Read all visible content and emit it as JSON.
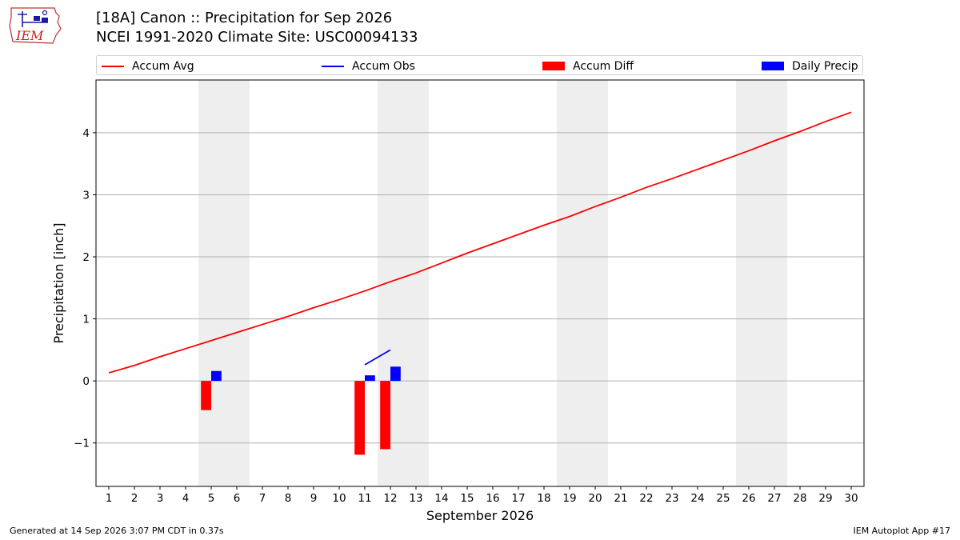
{
  "header": {
    "logo_text": "IEM",
    "title_line1": "[18A] Canon :: Precipitation for Sep 2026",
    "title_line2": "NCEI 1991-2020 Climate Site: USC00094133"
  },
  "colors": {
    "accum_avg": "#ff0000",
    "accum_obs": "#0000ff",
    "accum_diff": "#ff0000",
    "daily_precip": "#0000ff",
    "weekend_shade": "#eeeeee",
    "grid": "#b0b0b0"
  },
  "legend": [
    {
      "label": "Accum Avg",
      "kind": "line",
      "color": "#ff0000"
    },
    {
      "label": "Accum Obs",
      "kind": "line",
      "color": "#0000ff"
    },
    {
      "label": "Accum Diff",
      "kind": "box",
      "color": "#ff0000"
    },
    {
      "label": "Daily Precip",
      "kind": "box",
      "color": "#0000ff"
    }
  ],
  "chart_data": {
    "type": "bar",
    "xlabel": "September 2026",
    "ylabel": "Precipitation [inch]",
    "xlim": [
      0.5,
      30.5
    ],
    "ylim": [
      -1.7,
      4.85
    ],
    "x_ticks": [
      1,
      2,
      3,
      4,
      5,
      6,
      7,
      8,
      9,
      10,
      11,
      12,
      13,
      14,
      15,
      16,
      17,
      18,
      19,
      20,
      21,
      22,
      23,
      24,
      25,
      26,
      27,
      28,
      29,
      30
    ],
    "y_ticks": [
      -1,
      0,
      1,
      2,
      3,
      4
    ],
    "y_tick_labels": [
      "−1",
      "0",
      "1",
      "2",
      "3",
      "4"
    ],
    "grid": "horizontal",
    "legend_position": "top",
    "weekend_spans": [
      [
        4.5,
        6.5
      ],
      [
        11.5,
        13.5
      ],
      [
        18.5,
        20.5
      ],
      [
        25.5,
        27.5
      ]
    ],
    "series": [
      {
        "name": "Accum Avg",
        "type": "line",
        "x": [
          1,
          2,
          3,
          4,
          5,
          6,
          7,
          8,
          9,
          10,
          11,
          12,
          13,
          14,
          15,
          16,
          17,
          18,
          19,
          20,
          21,
          22,
          23,
          24,
          25,
          26,
          27,
          28,
          29,
          30
        ],
        "values": [
          0.13,
          0.25,
          0.39,
          0.52,
          0.65,
          0.78,
          0.91,
          1.04,
          1.18,
          1.31,
          1.45,
          1.6,
          1.74,
          1.9,
          2.06,
          2.21,
          2.36,
          2.51,
          2.65,
          2.81,
          2.96,
          3.12,
          3.26,
          3.41,
          3.56,
          3.71,
          3.87,
          4.02,
          4.18,
          4.33
        ]
      },
      {
        "name": "Accum Obs",
        "type": "line",
        "x": [
          11,
          12
        ],
        "values": [
          0.26,
          0.5
        ]
      },
      {
        "name": "Accum Diff",
        "type": "bar",
        "x": [
          5,
          11,
          12
        ],
        "values": [
          -0.47,
          -1.19,
          -1.1
        ]
      },
      {
        "name": "Daily Precip",
        "type": "bar",
        "x": [
          5,
          11,
          12
        ],
        "values": [
          0.16,
          0.09,
          0.23
        ]
      }
    ]
  },
  "footer": {
    "generated": "Generated at 14 Sep 2026 3:07 PM CDT in 0.37s",
    "app": "IEM Autoplot App #17"
  }
}
